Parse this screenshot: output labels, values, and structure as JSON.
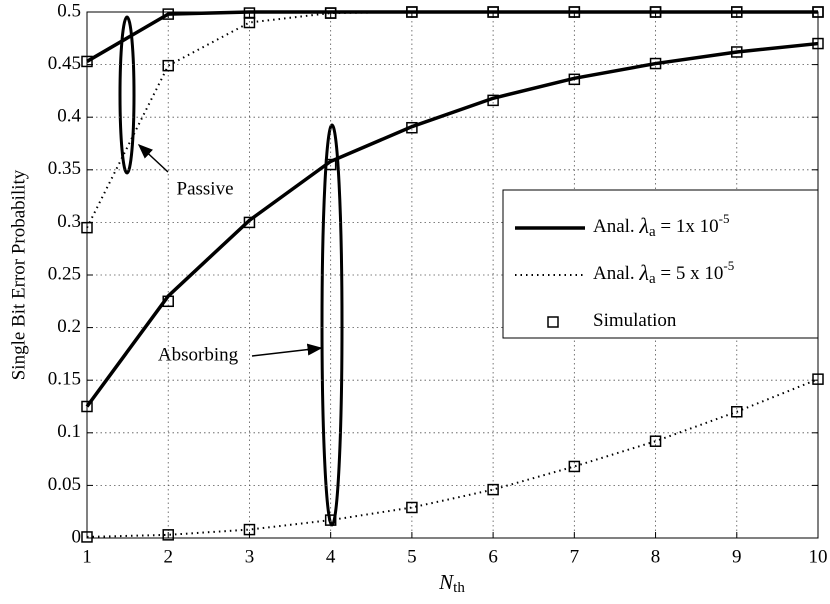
{
  "chart_data": {
    "type": "line",
    "y_label": "Single Bit Error Probability",
    "x_label": {
      "main": "N",
      "sub": "th"
    },
    "x": [
      1,
      2,
      3,
      4,
      5,
      6,
      7,
      8,
      9,
      10
    ],
    "xlim": [
      1,
      10
    ],
    "xticks": [
      1,
      2,
      3,
      4,
      5,
      6,
      7,
      8,
      9,
      10
    ],
    "ylim": [
      0,
      0.5
    ],
    "yticks": [
      0,
      0.05,
      0.1,
      0.15,
      0.2,
      0.25,
      0.3,
      0.35,
      0.4,
      0.45,
      0.5
    ],
    "grid": true,
    "color": "#000000",
    "series": [
      {
        "style": "solid",
        "values": [
          0.125,
          0.23,
          0.302,
          0.358,
          0.391,
          0.418,
          0.437,
          0.451,
          0.462,
          0.47
        ]
      },
      {
        "style": "dotted",
        "values": [
          0.001,
          0.003,
          0.008,
          0.017,
          0.029,
          0.046,
          0.068,
          0.092,
          0.12,
          0.151
        ]
      },
      {
        "style": "solid",
        "values": [
          0.453,
          0.498,
          0.5,
          0.5,
          0.5,
          0.5,
          0.5,
          0.5,
          0.5,
          0.5
        ]
      },
      {
        "style": "dotted",
        "values": [
          0.295,
          0.449,
          0.49,
          0.499,
          0.5,
          0.5,
          0.5,
          0.5,
          0.5,
          0.5
        ]
      },
      {
        "style": "marker",
        "values": [
          0.125,
          0.225,
          0.3,
          0.355,
          0.39,
          0.416,
          0.436,
          0.451,
          0.462,
          0.47
        ]
      },
      {
        "style": "marker",
        "values": [
          0.001,
          0.003,
          0.008,
          0.017,
          0.029,
          0.046,
          0.068,
          0.092,
          0.12,
          0.151
        ]
      },
      {
        "style": "marker",
        "values": [
          0.453,
          0.498,
          0.499,
          0.499,
          0.5,
          0.5,
          0.5,
          0.5,
          0.5,
          0.5
        ]
      },
      {
        "style": "marker",
        "values": [
          0.295,
          0.449,
          0.49,
          0.499,
          0.5,
          0.5,
          0.5,
          0.5,
          0.5,
          0.5
        ]
      }
    ],
    "legend": {
      "position": "right",
      "entries": [
        {
          "style": "solid",
          "label": {
            "prefix": "Anal. ",
            "symbol": "λ",
            "sub": "a",
            "mid": " = 1x 10",
            "sup": "-5"
          }
        },
        {
          "style": "dotted",
          "label": {
            "prefix": "Anal. ",
            "symbol": "λ",
            "sub": "a",
            "mid": " = 5 x 10",
            "sup": "-5"
          }
        },
        {
          "style": "marker",
          "label": {
            "prefix": "Simulation"
          }
        }
      ]
    },
    "annotations": [
      "Passive",
      "Absorbing"
    ]
  }
}
